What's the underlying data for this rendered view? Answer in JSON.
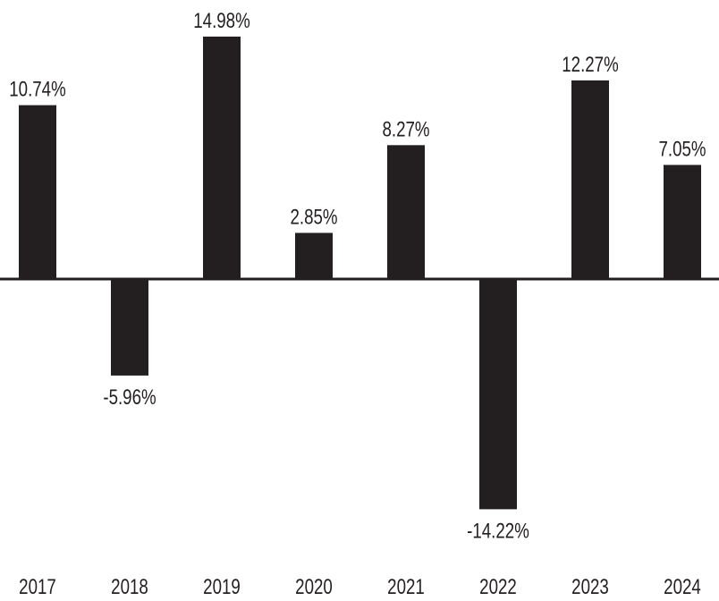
{
  "chart_data": {
    "type": "bar",
    "title": "",
    "xlabel": "",
    "ylabel": "",
    "categories": [
      "2017",
      "2018",
      "2019",
      "2020",
      "2021",
      "2022",
      "2023",
      "2024"
    ],
    "values": [
      10.74,
      -5.96,
      14.98,
      2.85,
      8.27,
      -14.22,
      12.27,
      7.05
    ],
    "value_labels": [
      "10.74%",
      "-5.96%",
      "14.98%",
      "2.85%",
      "8.27%",
      "-14.22%",
      "12.27%",
      "7.05%"
    ],
    "ylim": [
      -15.5,
      15.8
    ],
    "grid": false,
    "legend": "none",
    "colors": {
      "bar": "#231f20",
      "axis": "#231f20",
      "background": "#ffffff"
    }
  }
}
